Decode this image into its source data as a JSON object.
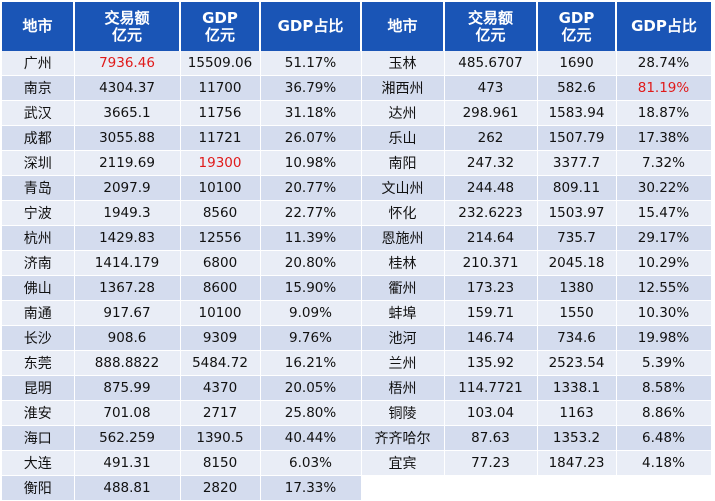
{
  "headers": [
    {
      "line1": "地市",
      "line2": ""
    },
    {
      "line1": "交易额",
      "line2": "亿元"
    },
    {
      "line1": "GDP",
      "line2": "亿元"
    },
    {
      "line1": "GDP占比",
      "line2": ""
    },
    {
      "line1": "地市",
      "line2": ""
    },
    {
      "line1": "交易额",
      "line2": "亿元"
    },
    {
      "line1": "GDP",
      "line2": "亿元"
    },
    {
      "line1": "GDP占比",
      "line2": ""
    }
  ],
  "highlight_color": "#e01a1a",
  "header_color": "#1a55b6",
  "rows": [
    {
      "l": {
        "city": "广州",
        "trade": "7936.46",
        "gdp": "15509.06",
        "ratio": "51.17%"
      },
      "r": {
        "city": "玉林",
        "trade": "485.6707",
        "gdp": "1690",
        "ratio": "28.74%"
      }
    },
    {
      "l": {
        "city": "南京",
        "trade": "4304.37",
        "gdp": "11700",
        "ratio": "36.79%"
      },
      "r": {
        "city": "湘西州",
        "trade": "473",
        "gdp": "582.6",
        "ratio": "81.19%"
      }
    },
    {
      "l": {
        "city": "武汉",
        "trade": "3665.1",
        "gdp": "11756",
        "ratio": "31.18%"
      },
      "r": {
        "city": "达州",
        "trade": "298.961",
        "gdp": "1583.94",
        "ratio": "18.87%"
      }
    },
    {
      "l": {
        "city": "成都",
        "trade": "3055.88",
        "gdp": "11721",
        "ratio": "26.07%"
      },
      "r": {
        "city": "乐山",
        "trade": "262",
        "gdp": "1507.79",
        "ratio": "17.38%"
      }
    },
    {
      "l": {
        "city": "深圳",
        "trade": "2119.69",
        "gdp": "19300",
        "ratio": "10.98%"
      },
      "r": {
        "city": "南阳",
        "trade": "247.32",
        "gdp": "3377.7",
        "ratio": "7.32%"
      }
    },
    {
      "l": {
        "city": "青岛",
        "trade": "2097.9",
        "gdp": "10100",
        "ratio": "20.77%"
      },
      "r": {
        "city": "文山州",
        "trade": "244.48",
        "gdp": "809.11",
        "ratio": "30.22%"
      }
    },
    {
      "l": {
        "city": "宁波",
        "trade": "1949.3",
        "gdp": "8560",
        "ratio": "22.77%"
      },
      "r": {
        "city": "怀化",
        "trade": "232.6223",
        "gdp": "1503.97",
        "ratio": "15.47%"
      }
    },
    {
      "l": {
        "city": "杭州",
        "trade": "1429.83",
        "gdp": "12556",
        "ratio": "11.39%"
      },
      "r": {
        "city": "恩施州",
        "trade": "214.64",
        "gdp": "735.7",
        "ratio": "29.17%"
      }
    },
    {
      "l": {
        "city": "济南",
        "trade": "1414.179",
        "gdp": "6800",
        "ratio": "20.80%"
      },
      "r": {
        "city": "桂林",
        "trade": "210.371",
        "gdp": "2045.18",
        "ratio": "10.29%"
      }
    },
    {
      "l": {
        "city": "佛山",
        "trade": "1367.28",
        "gdp": "8600",
        "ratio": "15.90%"
      },
      "r": {
        "city": "衢州",
        "trade": "173.23",
        "gdp": "1380",
        "ratio": "12.55%"
      }
    },
    {
      "l": {
        "city": "南通",
        "trade": "917.67",
        "gdp": "10100",
        "ratio": "9.09%"
      },
      "r": {
        "city": "蚌埠",
        "trade": "159.71",
        "gdp": "1550",
        "ratio": "10.30%"
      }
    },
    {
      "l": {
        "city": "长沙",
        "trade": "908.6",
        "gdp": "9309",
        "ratio": "9.76%"
      },
      "r": {
        "city": "池河",
        "trade": "146.74",
        "gdp": "734.6",
        "ratio": "19.98%"
      }
    },
    {
      "l": {
        "city": "东莞",
        "trade": "888.8822",
        "gdp": "5484.72",
        "ratio": "16.21%"
      },
      "r": {
        "city": "兰州",
        "trade": "135.92",
        "gdp": "2523.54",
        "ratio": "5.39%"
      }
    },
    {
      "l": {
        "city": "昆明",
        "trade": "875.99",
        "gdp": "4370",
        "ratio": "20.05%"
      },
      "r": {
        "city": "梧州",
        "trade": "114.7721",
        "gdp": "1338.1",
        "ratio": "8.58%"
      }
    },
    {
      "l": {
        "city": "淮安",
        "trade": "701.08",
        "gdp": "2717",
        "ratio": "25.80%"
      },
      "r": {
        "city": "铜陵",
        "trade": "103.04",
        "gdp": "1163",
        "ratio": "8.86%"
      }
    },
    {
      "l": {
        "city": "海口",
        "trade": "562.259",
        "gdp": "1390.5",
        "ratio": "40.44%"
      },
      "r": {
        "city": "齐齐哈尔",
        "trade": "87.63",
        "gdp": "1353.2",
        "ratio": "6.48%"
      }
    },
    {
      "l": {
        "city": "大连",
        "trade": "491.31",
        "gdp": "8150",
        "ratio": "6.03%"
      },
      "r": {
        "city": "宜宾",
        "trade": "77.23",
        "gdp": "1847.23",
        "ratio": "4.18%"
      }
    },
    {
      "l": {
        "city": "衡阳",
        "trade": "488.81",
        "gdp": "2820",
        "ratio": "17.33%"
      },
      "r": null
    }
  ]
}
